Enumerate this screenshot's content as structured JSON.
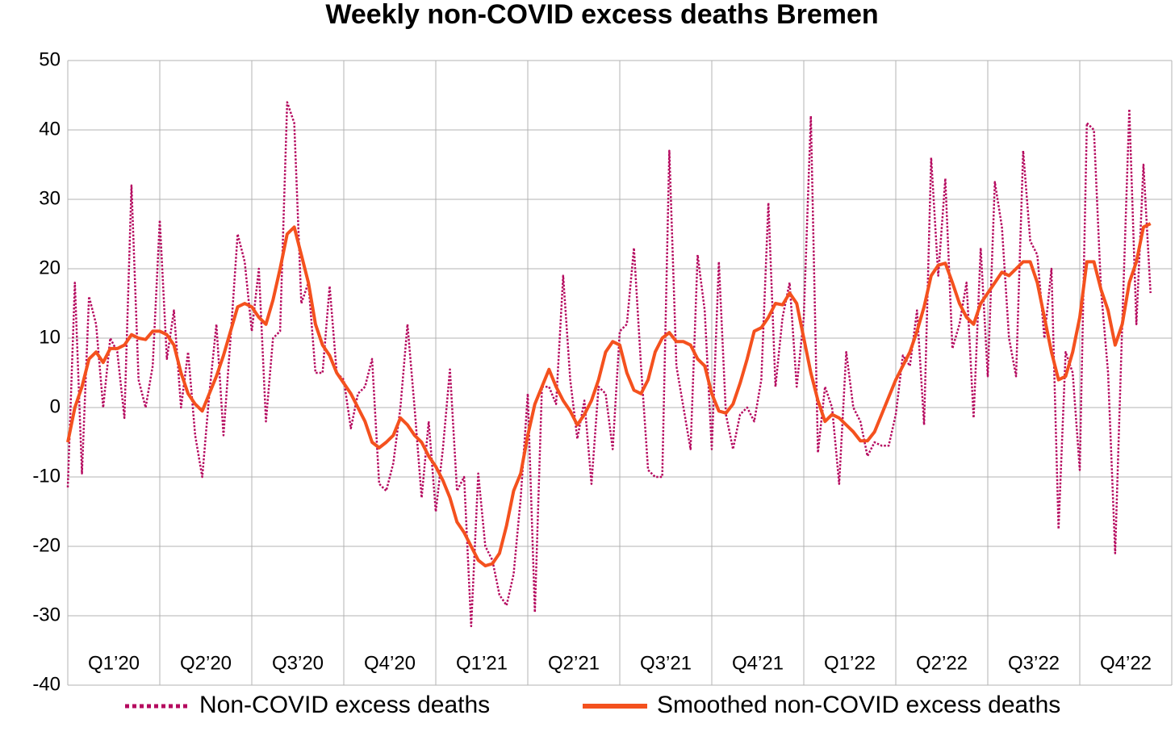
{
  "chart_data": {
    "type": "line",
    "title": "Weekly non-COVID excess deaths Bremen",
    "categories": [
      null,
      null,
      null,
      null,
      null,
      null,
      "Q1’20",
      null,
      null,
      null,
      null,
      null,
      null,
      null,
      null,
      null,
      null,
      null,
      null,
      "Q2’20",
      null,
      null,
      null,
      null,
      null,
      null,
      null,
      null,
      null,
      null,
      null,
      null,
      "Q3’20",
      null,
      null,
      null,
      null,
      null,
      null,
      null,
      null,
      null,
      null,
      null,
      null,
      "Q4’20",
      null,
      null,
      null,
      null,
      null,
      null,
      null,
      null,
      null,
      null,
      null,
      null,
      "Q1’21",
      null,
      null,
      null,
      null,
      null,
      null,
      null,
      null,
      null,
      null,
      null,
      null,
      "Q2’21",
      null,
      null,
      null,
      null,
      null,
      null,
      null,
      null,
      null,
      null,
      null,
      null,
      "Q3’21",
      null,
      null,
      null,
      null,
      null,
      null,
      null,
      null,
      null,
      null,
      null,
      null,
      "Q4’21",
      null,
      null,
      null,
      null,
      null,
      null,
      null,
      null,
      null,
      null,
      null,
      null,
      "Q1’22",
      null,
      null,
      null,
      null,
      null,
      null,
      null,
      null,
      null,
      null,
      null,
      null,
      "Q2’22",
      null,
      null,
      null,
      null,
      null,
      null,
      null,
      null,
      null,
      null,
      null,
      null,
      "Q3’22",
      null,
      null,
      null,
      null,
      null,
      null,
      null,
      null,
      null,
      null,
      null,
      null,
      "Q4’22",
      null,
      null,
      null,
      null,
      null,
      null
    ],
    "series": [
      {
        "name": "Non-COVID excess deaths",
        "color": "#b5095f",
        "style": "dotted",
        "values": [
          -11.5,
          18,
          -9.5,
          16,
          12,
          0,
          10,
          8,
          -1.5,
          32,
          4,
          0,
          6,
          27,
          7,
          14,
          0,
          8,
          -4,
          -10,
          2,
          12,
          -4,
          10,
          25,
          21,
          11,
          20,
          -2,
          10,
          11,
          44,
          41,
          15,
          18,
          5,
          5,
          17.5,
          5,
          4,
          -3,
          2,
          3,
          7,
          -11,
          -12,
          -8,
          0,
          12,
          0,
          -13,
          -2,
          -15,
          -6,
          5.5,
          -12,
          -10,
          -31.5,
          -9.5,
          -20,
          -22,
          -27,
          -28.5,
          -24,
          -13,
          2,
          -29.5,
          3,
          3,
          0.5,
          19,
          4,
          -4.5,
          1,
          -11,
          3,
          2,
          -6,
          11,
          12,
          23,
          6,
          -9,
          -10,
          -10,
          37,
          6,
          0,
          -6,
          22,
          14,
          -6,
          21,
          -1,
          -6,
          -1,
          0,
          -2,
          4,
          29.5,
          3,
          13,
          18,
          3,
          13,
          42,
          -6.5,
          3,
          0,
          -11,
          8,
          0,
          -2,
          -7,
          -5,
          -5.5,
          -5.5,
          -1,
          7.5,
          6,
          14,
          -2.5,
          36,
          19,
          33,
          8.5,
          12,
          18,
          -1.5,
          23,
          4.5,
          32.5,
          26,
          10,
          4.5,
          37,
          24,
          22,
          10,
          20,
          -17.5,
          8,
          5,
          -9,
          41,
          40,
          17,
          5,
          -21,
          12,
          43,
          12,
          35,
          16.5,
          null,
          null
        ]
      },
      {
        "name": "Smoothed non-COVID excess deaths",
        "color": "#f4511e",
        "style": "solid",
        "values": [
          -5,
          0,
          3,
          7,
          8,
          6.5,
          8.5,
          8.5,
          9,
          10.5,
          10,
          9.8,
          11,
          11,
          10.5,
          9,
          5,
          2,
          0.5,
          -0.5,
          2,
          4.5,
          7.5,
          11,
          14.5,
          15,
          14.5,
          13,
          12,
          15.5,
          20,
          25,
          26,
          22,
          18,
          12,
          9,
          7.5,
          5,
          3.5,
          2,
          0,
          -2,
          -5,
          -5.8,
          -5,
          -4,
          -1.5,
          -2.5,
          -4,
          -5,
          -7,
          -8.5,
          -10.5,
          -13,
          -16.5,
          -18,
          -20,
          -22,
          -22.8,
          -22.5,
          -21,
          -17,
          -12,
          -9.5,
          -4,
          0.5,
          3,
          5.5,
          3,
          1,
          -0.5,
          -2.5,
          -1,
          1,
          4,
          8,
          9.5,
          9,
          5,
          2.5,
          2,
          4,
          8,
          10,
          10.8,
          9.5,
          9.5,
          9,
          7,
          6,
          2,
          -0.5,
          -0.8,
          0.5,
          3.5,
          7,
          11,
          11.5,
          13,
          15,
          14.8,
          16.5,
          15,
          10,
          5,
          1,
          -2,
          -1,
          -1.5,
          -2.5,
          -3.5,
          -4.8,
          -4.8,
          -3.5,
          -1,
          1.5,
          4,
          6,
          8,
          11,
          14.5,
          19,
          20.5,
          20.8,
          18,
          15,
          13,
          12,
          15,
          16.5,
          18,
          19.5,
          19,
          20,
          21,
          21,
          18,
          13,
          8,
          4,
          4.5,
          8,
          13,
          21,
          21,
          17,
          14,
          9,
          12,
          18,
          21,
          26,
          26.5,
          null,
          null
        ]
      }
    ],
    "ylim": [
      -40,
      50
    ],
    "yticks": [
      -40,
      -30,
      -20,
      -10,
      0,
      10,
      20,
      30,
      40,
      50
    ],
    "grid": true,
    "legend": "bottom"
  }
}
